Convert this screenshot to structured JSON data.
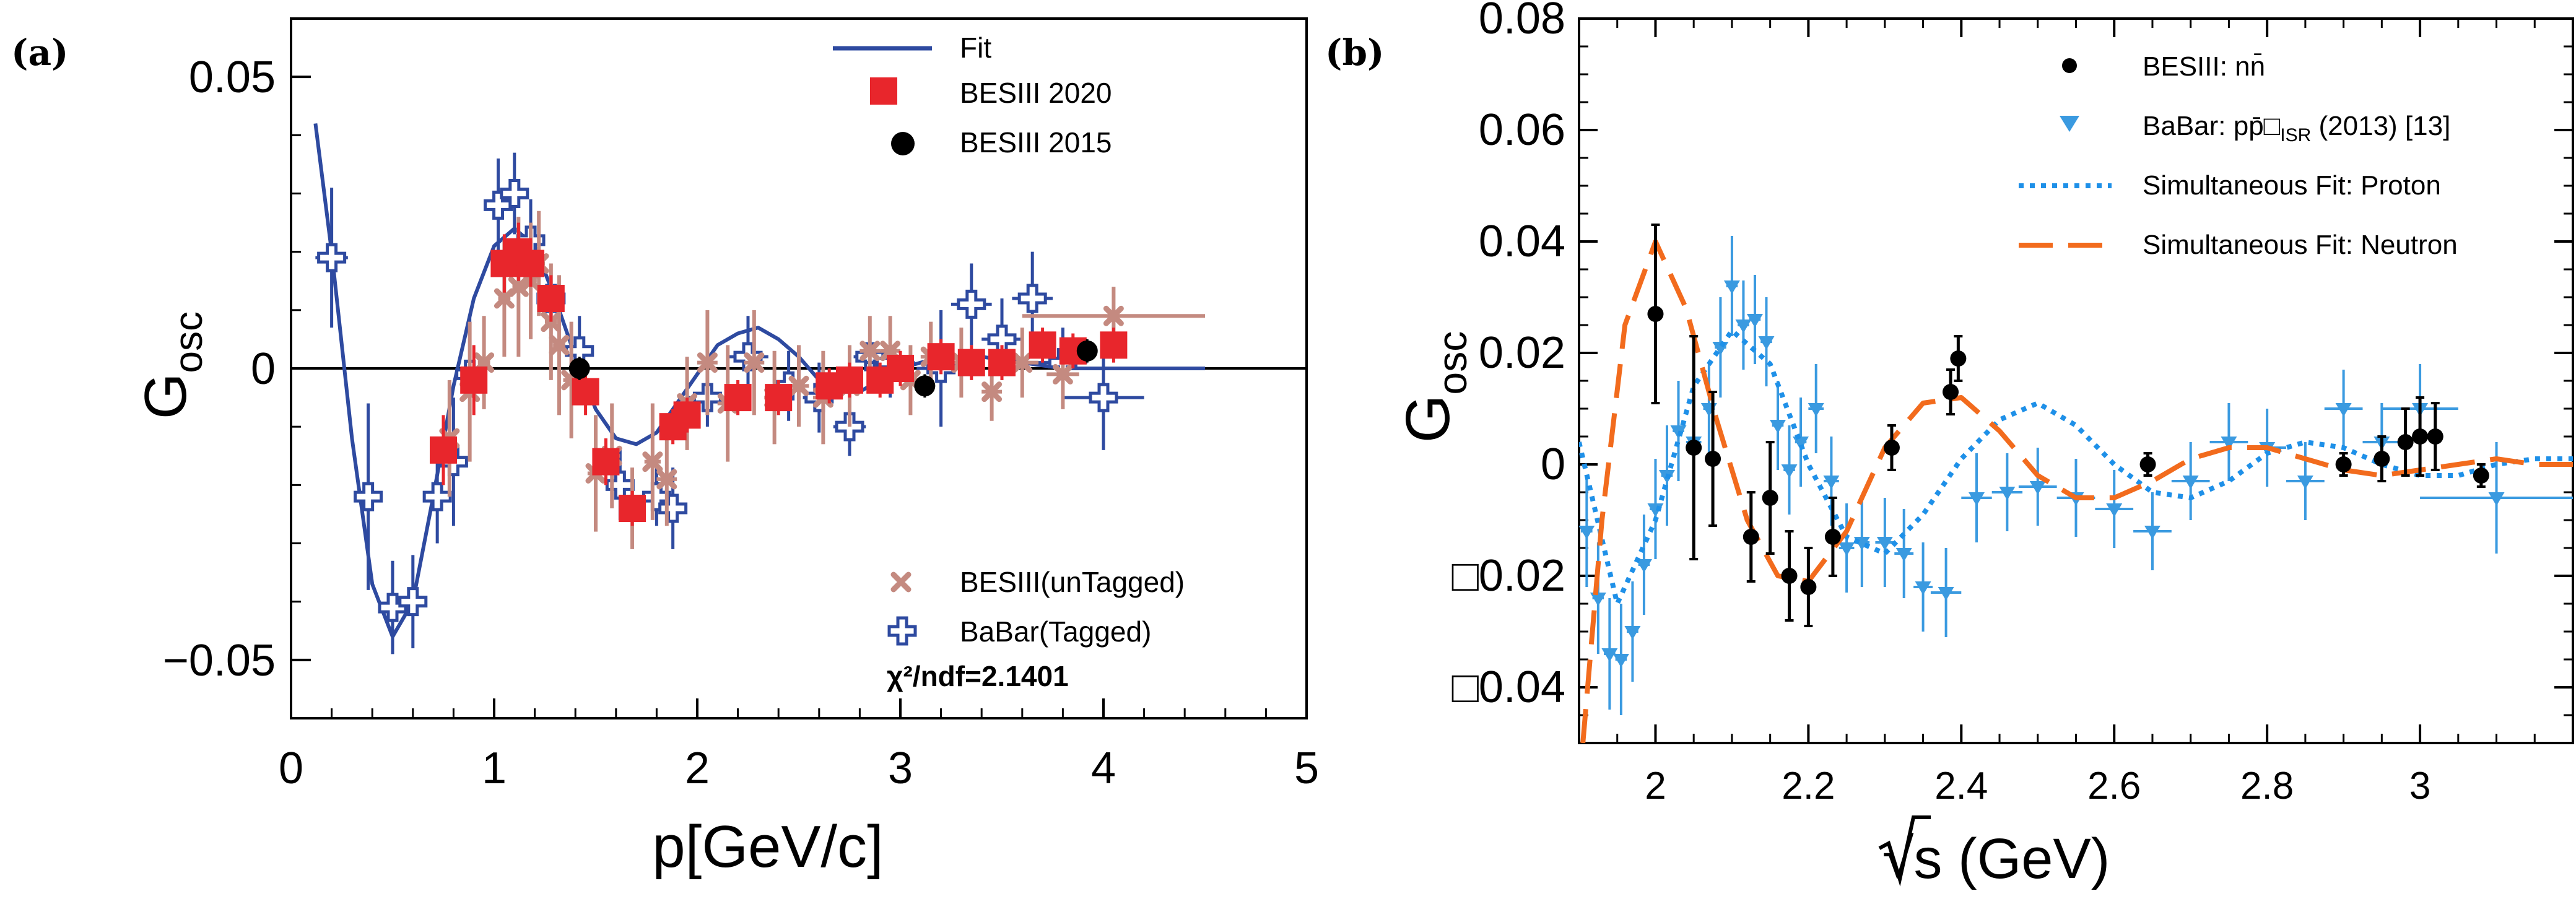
{
  "chart_data": [
    {
      "type": "scatter",
      "panel_label": "(a)",
      "xlabel": "p[GeV/c]",
      "ylabel": "G",
      "ylabel_sub": "osc",
      "xlim": [
        0,
        5
      ],
      "ylim": [
        -0.06,
        0.06
      ],
      "x_ticks": [
        0,
        1,
        2,
        3,
        4,
        5
      ],
      "x_tick_labels": [
        "0",
        "1",
        "2",
        "3",
        "4",
        "5"
      ],
      "y_ticks": [
        -0.05,
        0,
        0.05
      ],
      "y_tick_labels": [
        "−0.05",
        "0",
        "0.05"
      ],
      "annotation": "χ²/ndf=2.1401",
      "legend_top": [
        {
          "label": "Fit",
          "style": "line",
          "color": "#2e4aa0"
        },
        {
          "label": "BESIII 2020",
          "style": "square",
          "color": "#e8262c"
        },
        {
          "label": "BESIII 2015",
          "style": "circle",
          "color": "#000000"
        }
      ],
      "legend_bottom": [
        {
          "label": "BESIII(unTagged)",
          "style": "cross",
          "color": "#c48a80"
        },
        {
          "label": "BaBar(Tagged)",
          "style": "open-cross",
          "color": "#2e4aa0"
        }
      ],
      "fit": {
        "x": [
          0.12,
          0.2,
          0.3,
          0.4,
          0.5,
          0.6,
          0.7,
          0.8,
          0.9,
          1.0,
          1.1,
          1.2,
          1.3,
          1.4,
          1.5,
          1.6,
          1.7,
          1.8,
          1.9,
          2.0,
          2.1,
          2.2,
          2.3,
          2.4,
          2.5,
          2.6,
          2.7,
          2.8,
          2.9,
          3.0,
          3.2,
          3.4,
          3.6,
          3.8,
          4.0,
          4.2,
          4.5
        ],
        "y": [
          0.042,
          0.02,
          -0.012,
          -0.037,
          -0.046,
          -0.04,
          -0.022,
          -0.003,
          0.012,
          0.021,
          0.024,
          0.021,
          0.012,
          0.002,
          -0.007,
          -0.012,
          -0.013,
          -0.011,
          -0.006,
          -0.001,
          0.004,
          0.006,
          0.007,
          0.005,
          0.002,
          -0.002,
          -0.004,
          -0.004,
          -0.002,
          0.0,
          0.002,
          0.002,
          0.001,
          0.0,
          0.0,
          0.0,
          0.0
        ]
      },
      "series": [
        {
          "name": "BabarTagged",
          "x": [
            0.2,
            0.38,
            0.5,
            0.6,
            0.72,
            0.8,
            0.88,
            1.02,
            1.1,
            1.18,
            1.28,
            1.42,
            1.62,
            1.8,
            1.88,
            2.05,
            2.25,
            2.45,
            2.6,
            2.75,
            2.85,
            2.95,
            3.2,
            3.35,
            3.5,
            3.65,
            3.8,
            4.0
          ],
          "y": [
            0.019,
            -0.022,
            -0.041,
            -0.04,
            -0.022,
            -0.016,
            -0.001,
            0.028,
            0.03,
            0.022,
            0.012,
            0.003,
            -0.02,
            -0.022,
            -0.024,
            -0.005,
            0.002,
            -0.003,
            -0.005,
            -0.01,
            0.002,
            0.001,
            0.0,
            0.011,
            0.005,
            0.012,
            0.001,
            -0.005
          ],
          "yerr": [
            0.012,
            0.016,
            0.008,
            0.008,
            0.008,
            0.011,
            0.01,
            0.008,
            0.007,
            0.007,
            0.006,
            0.006,
            0.006,
            0.005,
            0.007,
            0.005,
            0.007,
            0.006,
            0.006,
            0.005,
            0.006,
            0.006,
            0.01,
            0.007,
            0.007,
            0.008,
            0.006,
            0.009
          ],
          "xerr": [
            0.08,
            0.05,
            0.04,
            0.04,
            0.04,
            0.04,
            0.04,
            0.03,
            0.04,
            0.03,
            0.03,
            0.04,
            0.06,
            0.05,
            0.05,
            0.1,
            0.1,
            0.08,
            0.08,
            0.08,
            0.08,
            0.12,
            0.12,
            0.1,
            0.1,
            0.1,
            0.12,
            0.2
          ]
        },
        {
          "name": "BESIII unTagged",
          "x": [
            0.78,
            0.88,
            0.95,
            1.05,
            1.12,
            1.18,
            1.22,
            1.28,
            1.32,
            1.38,
            1.5,
            1.58,
            1.68,
            1.78,
            1.85,
            1.95,
            2.05,
            2.15,
            2.28,
            2.38,
            2.5,
            2.62,
            2.75,
            2.85,
            2.95,
            3.05,
            3.15,
            3.3,
            3.45,
            3.6,
            3.8,
            4.05
          ],
          "y": [
            -0.012,
            -0.004,
            0.001,
            0.012,
            0.014,
            0.015,
            0.018,
            0.008,
            0.004,
            -0.002,
            -0.018,
            -0.015,
            -0.024,
            -0.016,
            -0.019,
            -0.006,
            0.001,
            -0.006,
            0.001,
            -0.005,
            -0.003,
            -0.005,
            -0.003,
            0.003,
            0.003,
            -0.002,
            0.002,
            0.001,
            -0.004,
            0.001,
            -0.001,
            0.009
          ],
          "yerr": [
            0.01,
            0.012,
            0.008,
            0.01,
            0.012,
            0.01,
            0.009,
            0.01,
            0.012,
            0.01,
            0.01,
            0.009,
            0.007,
            0.01,
            0.008,
            0.008,
            0.009,
            0.01,
            0.009,
            0.008,
            0.007,
            0.008,
            0.007,
            0.006,
            0.006,
            0.006,
            0.006,
            0.006,
            0.005,
            0.006,
            0.006,
            0.005
          ],
          "xerr": [
            0.03,
            0.03,
            0.03,
            0.03,
            0.03,
            0.03,
            0.03,
            0.03,
            0.03,
            0.04,
            0.04,
            0.04,
            0.04,
            0.04,
            0.05,
            0.05,
            0.05,
            0.05,
            0.05,
            0.05,
            0.05,
            0.05,
            0.05,
            0.05,
            0.05,
            0.05,
            0.05,
            0.05,
            0.05,
            0.08,
            0.08,
            0.45
          ]
        },
        {
          "name": "BESIII 2020",
          "x": [
            0.75,
            0.9,
            1.05,
            1.12,
            1.18,
            1.28,
            1.45,
            1.55,
            1.68,
            1.88,
            1.95,
            2.2,
            2.4,
            2.65,
            2.75,
            2.9,
            3.0,
            3.2,
            3.35,
            3.5,
            3.7,
            3.85,
            4.05
          ],
          "y": [
            -0.014,
            -0.002,
            0.018,
            0.02,
            0.018,
            0.012,
            -0.004,
            -0.016,
            -0.024,
            -0.01,
            -0.008,
            -0.005,
            -0.005,
            -0.003,
            -0.002,
            -0.002,
            0.0,
            0.002,
            0.001,
            0.001,
            0.004,
            0.003,
            0.004
          ],
          "yerr": [
            0.006,
            0.006,
            0.005,
            0.005,
            0.004,
            0.004,
            0.004,
            0.004,
            0.003,
            0.003,
            0.003,
            0.003,
            0.003,
            0.003,
            0.003,
            0.003,
            0.003,
            0.003,
            0.003,
            0.003,
            0.003,
            0.003,
            0.003
          ]
        },
        {
          "name": "BESIII 2015",
          "x": [
            1.42,
            3.12,
            3.92
          ],
          "y": [
            0.0,
            -0.003,
            0.003
          ],
          "yerr": [
            0.002,
            0.002,
            0.002
          ]
        }
      ]
    },
    {
      "type": "scatter",
      "panel_label": "(b)",
      "xlabel": "√s (GeV)",
      "ylabel": "G",
      "ylabel_sub": "osc",
      "xlim": [
        1.9,
        3.2
      ],
      "ylim": [
        -0.05,
        0.08
      ],
      "x_ticks": [
        2.0,
        2.2,
        2.4,
        2.6,
        2.8,
        3.0
      ],
      "x_tick_labels": [
        "2",
        "2.2",
        "2.4",
        "2.6",
        "2.8",
        "3"
      ],
      "y_ticks": [
        -0.04,
        -0.02,
        0,
        0.02,
        0.04,
        0.06,
        0.08
      ],
      "y_tick_labels": [
        "□0.04",
        "□0.02",
        "0",
        "0.02",
        "0.04",
        "0.06",
        "0.08"
      ],
      "legend": [
        {
          "label": "BESIII: nn̄",
          "style": "circle",
          "color": "#000000"
        },
        {
          "label": "BaBar: pp̄□",
          "sub": "ISR",
          "suffix": " (2013) [13]",
          "style": "triangle",
          "color": "#3a9ae0"
        },
        {
          "label": "Simultaneous Fit: Proton",
          "style": "dotted",
          "color": "#1e90e8"
        },
        {
          "label": "Simultaneous Fit: Neutron",
          "style": "dashed",
          "color": "#f26b1d"
        }
      ],
      "fit_proton": {
        "x": [
          1.9,
          1.95,
          2.0,
          2.05,
          2.1,
          2.15,
          2.2,
          2.25,
          2.3,
          2.35,
          2.4,
          2.45,
          2.5,
          2.55,
          2.6,
          2.65,
          2.7,
          2.75,
          2.8,
          2.85,
          2.9,
          2.95,
          3.0,
          3.05,
          3.1,
          3.15,
          3.2
        ],
        "y": [
          0.004,
          -0.025,
          -0.01,
          0.014,
          0.024,
          0.018,
          0.0,
          -0.013,
          -0.016,
          -0.009,
          0.001,
          0.008,
          0.011,
          0.007,
          0.0,
          -0.005,
          -0.006,
          -0.003,
          0.002,
          0.004,
          0.003,
          0.0,
          -0.002,
          -0.002,
          0.0,
          0.001,
          0.001
        ]
      },
      "fit_neutron": {
        "x": [
          1.905,
          1.93,
          1.96,
          2.0,
          2.04,
          2.08,
          2.12,
          2.16,
          2.2,
          2.25,
          2.3,
          2.35,
          2.4,
          2.45,
          2.5,
          2.55,
          2.6,
          2.65,
          2.7,
          2.75,
          2.8,
          2.85,
          2.9,
          2.95,
          3.0,
          3.05,
          3.1,
          3.15,
          3.2
        ],
        "y": [
          -0.05,
          -0.01,
          0.025,
          0.04,
          0.028,
          0.008,
          -0.01,
          -0.02,
          -0.021,
          -0.012,
          0.003,
          0.011,
          0.012,
          0.006,
          -0.002,
          -0.006,
          -0.006,
          -0.003,
          0.001,
          0.003,
          0.003,
          0.001,
          -0.001,
          -0.002,
          -0.001,
          0.0,
          0.001,
          0.0,
          0.0
        ]
      },
      "series": [
        {
          "name": "BESIII: nn̄",
          "x": [
            2.0,
            2.05,
            2.075,
            2.125,
            2.15,
            2.175,
            2.2,
            2.232,
            2.309,
            2.386,
            2.396,
            2.644,
            2.9,
            2.95,
            2.981,
            3.0,
            3.02,
            3.08
          ],
          "y": [
            0.027,
            0.003,
            0.001,
            -0.013,
            -0.006,
            -0.02,
            -0.022,
            -0.013,
            0.003,
            0.013,
            0.019,
            0.0,
            0.0,
            0.001,
            0.004,
            0.005,
            0.005,
            -0.002
          ],
          "yerr": [
            0.016,
            0.02,
            0.012,
            0.008,
            0.01,
            0.008,
            0.007,
            0.007,
            0.004,
            0.004,
            0.004,
            0.002,
            0.002,
            0.004,
            0.006,
            0.007,
            0.006,
            0.002
          ]
        },
        {
          "name": "BaBar ISR",
          "x": [
            1.91,
            1.925,
            1.94,
            1.955,
            1.97,
            1.985,
            2.0,
            2.015,
            2.03,
            2.05,
            2.07,
            2.085,
            2.1,
            2.115,
            2.13,
            2.145,
            2.16,
            2.175,
            2.19,
            2.21,
            2.23,
            2.25,
            2.27,
            2.3,
            2.325,
            2.35,
            2.38,
            2.42,
            2.46,
            2.5,
            2.55,
            2.6,
            2.65,
            2.7,
            2.75,
            2.8,
            2.85,
            2.9,
            2.95,
            3.0,
            3.1
          ],
          "y": [
            -0.012,
            -0.024,
            -0.034,
            -0.035,
            -0.03,
            -0.018,
            -0.008,
            -0.002,
            0.006,
            0.004,
            0.01,
            0.021,
            0.032,
            0.025,
            0.026,
            0.022,
            0.007,
            -0.001,
            0.004,
            0.01,
            -0.003,
            -0.015,
            -0.014,
            -0.014,
            -0.016,
            -0.022,
            -0.023,
            -0.006,
            -0.005,
            -0.004,
            -0.006,
            -0.008,
            -0.012,
            -0.003,
            0.004,
            0.003,
            -0.003,
            0.01,
            0.004,
            0.01,
            -0.006
          ],
          "yerr": [
            0.01,
            0.01,
            0.01,
            0.01,
            0.009,
            0.009,
            0.009,
            0.009,
            0.009,
            0.008,
            0.008,
            0.009,
            0.009,
            0.008,
            0.008,
            0.008,
            0.008,
            0.008,
            0.008,
            0.008,
            0.008,
            0.008,
            0.008,
            0.008,
            0.008,
            0.008,
            0.008,
            0.008,
            0.007,
            0.007,
            0.007,
            0.007,
            0.007,
            0.007,
            0.007,
            0.007,
            0.007,
            0.007,
            0.007,
            0.008,
            0.01
          ],
          "xerr": [
            0.0075,
            0.0075,
            0.0075,
            0.0075,
            0.0075,
            0.0075,
            0.0075,
            0.0075,
            0.0075,
            0.01,
            0.0075,
            0.0075,
            0.0075,
            0.0075,
            0.0075,
            0.0075,
            0.0075,
            0.0075,
            0.0075,
            0.01,
            0.01,
            0.01,
            0.01,
            0.0125,
            0.0125,
            0.0125,
            0.02,
            0.02,
            0.02,
            0.025,
            0.025,
            0.025,
            0.025,
            0.025,
            0.025,
            0.025,
            0.025,
            0.025,
            0.025,
            0.05,
            0.1
          ]
        }
      ]
    }
  ]
}
